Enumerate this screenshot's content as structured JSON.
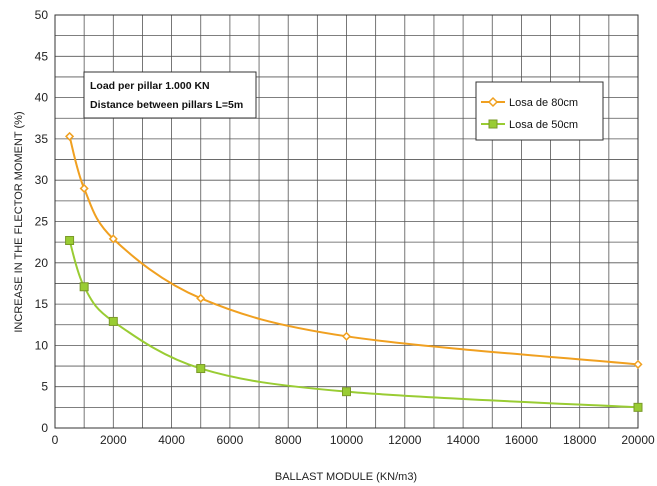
{
  "chart_data": {
    "type": "line",
    "xlabel": "BALLAST MODULE (KN/m3)",
    "ylabel": "INCREASE IN THE FLECTOR MOMENT (%)",
    "xlim": [
      0,
      20000
    ],
    "ylim": [
      0,
      50
    ],
    "x_ticks": [
      "0",
      "2000",
      "4000",
      "6000",
      "8000",
      "10000",
      "12000",
      "14000",
      "16000",
      "18000",
      "20000"
    ],
    "y_ticks": [
      "0",
      "5",
      "10",
      "15",
      "20",
      "25",
      "30",
      "35",
      "40",
      "45",
      "50"
    ],
    "grid": true,
    "legend_position": "top-right",
    "annotation": {
      "lines": [
        "Load per pillar 1.000 KN",
        "Distance between pillars  L=5m"
      ]
    },
    "series": [
      {
        "name": "Losa de 80cm",
        "color": "#f0a020",
        "marker": "diamond",
        "x": [
          500,
          1000,
          2000,
          5000,
          10000,
          20000
        ],
        "values": [
          35.3,
          29.0,
          22.9,
          15.7,
          11.1,
          7.7
        ]
      },
      {
        "name": "Losa de 50cm",
        "color": "#99cc33",
        "marker": "square",
        "x": [
          500,
          1000,
          2000,
          5000,
          10000,
          20000
        ],
        "values": [
          22.7,
          17.1,
          12.9,
          7.2,
          4.4,
          2.5
        ]
      }
    ]
  }
}
